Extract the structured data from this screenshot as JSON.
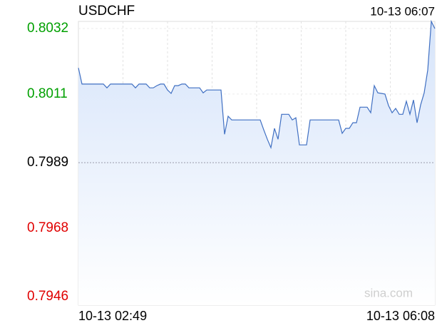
{
  "chart_data": {
    "type": "line",
    "title": "USDCHF",
    "time": "10-13 06:07",
    "watermark": "sina.com",
    "color": "#3f6fc2",
    "fill": "#dbe7fb",
    "base": 0.7989,
    "up_color": "#00a000",
    "down_color": "#e00000",
    "flat_color": "#000000",
    "ylim": [
      0.79433,
      0.80343
    ],
    "yticks": [
      0.8032,
      0.8011,
      0.7989,
      0.7968,
      0.7946
    ],
    "categories": [
      "10-13 02:49",
      null,
      null,
      null,
      null,
      null,
      null,
      null,
      null,
      null,
      null,
      null,
      null,
      null,
      null,
      null,
      null,
      null,
      null,
      null,
      null,
      null,
      null,
      null,
      null,
      null,
      null,
      null,
      null,
      null,
      null,
      null,
      null,
      null,
      null,
      null,
      null,
      null,
      null,
      null,
      null,
      null,
      null,
      null,
      null,
      null,
      null,
      null,
      null,
      null,
      null,
      null,
      null,
      null,
      null,
      null,
      null,
      null,
      null,
      null,
      null,
      null,
      null,
      null,
      null,
      null,
      null,
      null,
      null,
      null,
      null,
      null,
      null,
      null,
      null,
      null,
      null,
      null,
      null,
      null,
      null,
      null,
      null,
      null,
      null,
      null,
      null,
      null,
      null,
      null,
      null,
      null,
      null,
      null,
      null,
      null,
      null,
      null,
      null,
      null,
      "10-13 06:08"
    ],
    "values": [
      0.80194,
      0.80142,
      0.80142,
      0.80142,
      0.80142,
      0.80142,
      0.80142,
      0.80142,
      0.8013,
      0.80142,
      0.80142,
      0.80142,
      0.80142,
      0.80142,
      0.80142,
      0.80142,
      0.8013,
      0.80142,
      0.80142,
      0.80142,
      0.8013,
      0.8013,
      0.80137,
      0.80142,
      0.80142,
      0.80123,
      0.80112,
      0.80137,
      0.80137,
      0.80142,
      0.80142,
      0.8013,
      0.8013,
      0.8013,
      0.8013,
      0.80114,
      0.80123,
      0.80123,
      0.80123,
      0.80123,
      0.80123,
      0.79981,
      0.80039,
      0.80027,
      0.80027,
      0.80027,
      0.80027,
      0.80027,
      0.80027,
      0.80027,
      0.80027,
      0.80027,
      0.79995,
      0.79965,
      0.79938,
      0.8,
      0.79965,
      0.80045,
      0.80045,
      0.80045,
      0.80027,
      0.80034,
      0.79947,
      0.79947,
      0.79947,
      0.80027,
      0.80027,
      0.80027,
      0.80027,
      0.80027,
      0.80027,
      0.80027,
      0.80027,
      0.80027,
      0.79984,
      0.8,
      0.8,
      0.80018,
      0.80018,
      0.80068,
      0.80068,
      0.80068,
      0.8005,
      0.80137,
      0.80114,
      0.80112,
      0.8011,
      0.80073,
      0.8005,
      0.80064,
      0.80045,
      0.80045,
      0.80087,
      0.80045,
      0.80091,
      0.80018,
      0.80075,
      0.80114,
      0.80187,
      0.80343,
      0.8032
    ]
  }
}
